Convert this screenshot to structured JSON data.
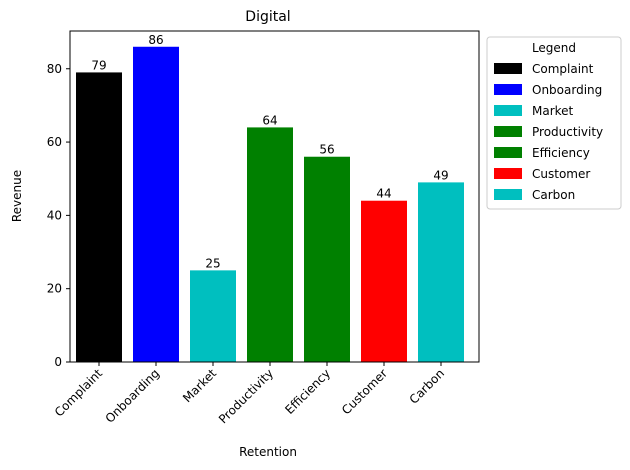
{
  "chart_data": {
    "type": "bar",
    "title": "Digital",
    "xlabel": "Retention",
    "ylabel": "Revenue",
    "categories": [
      "Complaint",
      "Onboarding",
      "Market",
      "Productivity",
      "Efficiency",
      "Customer",
      "Carbon"
    ],
    "values": [
      79,
      86,
      25,
      64,
      56,
      44,
      49
    ],
    "colors": [
      "#000000",
      "#0000ff",
      "#00bfbf",
      "#008000",
      "#008000",
      "#ff0000",
      "#00bfbf"
    ],
    "ylim": [
      0,
      90.3
    ],
    "yticks": [
      0,
      20,
      40,
      60,
      80
    ],
    "grid": false,
    "legend": {
      "title": "Legend",
      "placement": "outside-right-top",
      "entries": [
        "Complaint",
        "Onboarding",
        "Market",
        "Productivity",
        "Efficiency",
        "Customer",
        "Carbon"
      ]
    }
  }
}
